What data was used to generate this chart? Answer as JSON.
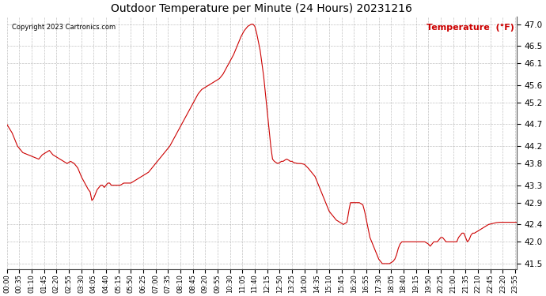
{
  "title": "Outdoor Temperature per Minute (24 Hours) 20231216",
  "copyright_text": "Copyright 2023 Cartronics.com",
  "legend_label": "Temperature  (°F)",
  "line_color": "#cc0000",
  "background_color": "#ffffff",
  "grid_color": "#999999",
  "yticks": [
    41.5,
    42.0,
    42.4,
    42.9,
    43.3,
    43.8,
    44.2,
    44.7,
    45.2,
    45.6,
    46.1,
    46.5,
    47.0
  ],
  "ylim": [
    41.38,
    47.18
  ],
  "total_minutes": 1440,
  "x_tick_interval": 35
}
